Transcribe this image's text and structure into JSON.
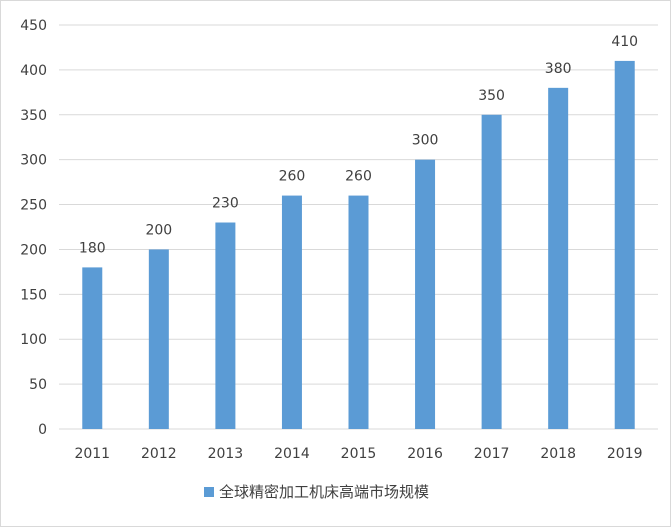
{
  "chart_data": {
    "type": "bar",
    "title": "",
    "xlabel": "",
    "ylabel": "",
    "categories": [
      "2011",
      "2012",
      "2013",
      "2014",
      "2015",
      "2016",
      "2017",
      "2018",
      "2019"
    ],
    "series": [
      {
        "name": "全球精密加工机床高端市场规模",
        "values": [
          180,
          200,
          230,
          260,
          260,
          300,
          350,
          380,
          410
        ],
        "color": "#5b9bd5"
      }
    ],
    "ylim": [
      0,
      450
    ],
    "yticks": [
      0,
      50,
      100,
      150,
      200,
      250,
      300,
      350,
      400,
      450
    ],
    "grid": true,
    "data_labels": true,
    "legend_position": "bottom"
  }
}
